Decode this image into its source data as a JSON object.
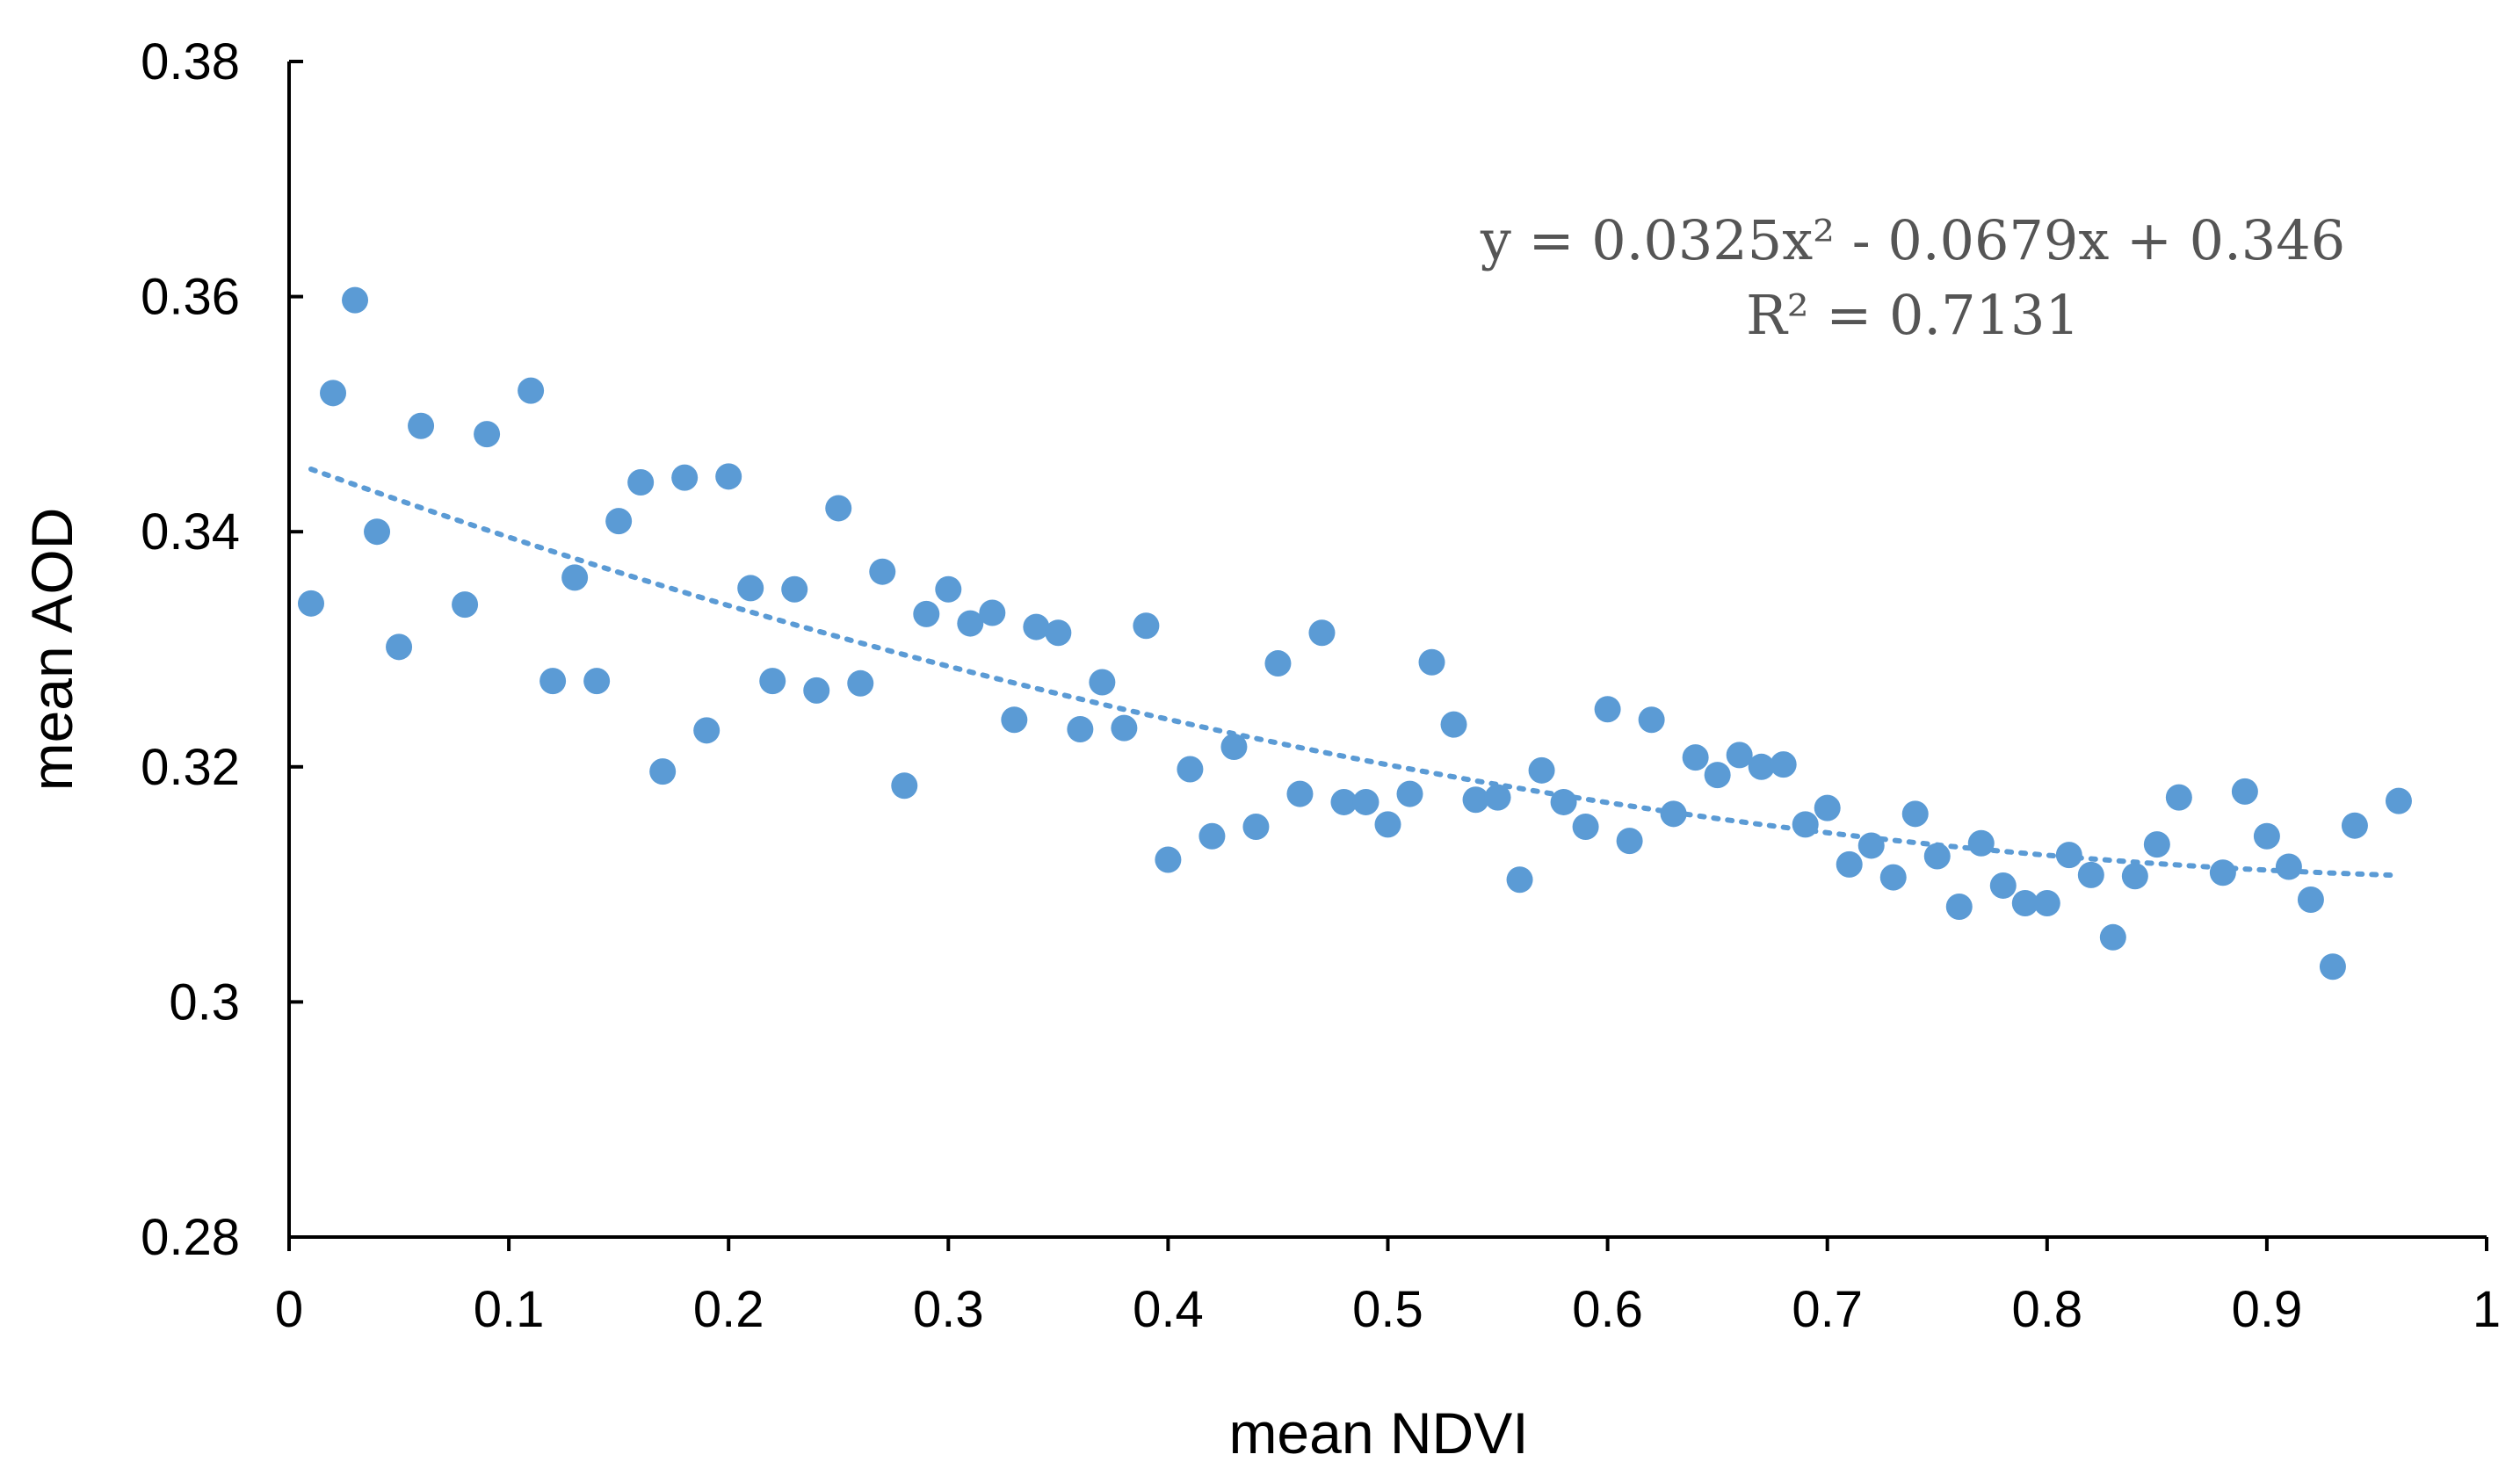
{
  "chart_data": {
    "type": "scatter",
    "title": "",
    "xlabel": "mean NDVI",
    "ylabel": "mean AOD",
    "xlim": [
      0,
      1
    ],
    "ylim": [
      0.28,
      0.38
    ],
    "x_ticks": [
      0,
      0.1,
      0.2,
      0.3,
      0.4,
      0.5,
      0.6,
      0.7,
      0.8,
      0.9,
      1
    ],
    "x_tick_labels": [
      "0",
      "0.1",
      "0.2",
      "0.3",
      "0.4",
      "0.5",
      "0.6",
      "0.7",
      "0.8",
      "0.9",
      "1"
    ],
    "y_ticks": [
      0.28,
      0.3,
      0.32,
      0.34,
      0.36,
      0.38
    ],
    "y_tick_labels": [
      "0.28",
      "0.3",
      "0.32",
      "0.34",
      "0.36",
      "0.38"
    ],
    "grid": false,
    "series": [
      {
        "name": "mean AOD",
        "color": "#5b9bd5",
        "x": [
          0.01,
          0.02,
          0.03,
          0.04,
          0.05,
          0.06,
          0.08,
          0.09,
          0.11,
          0.12,
          0.13,
          0.14,
          0.15,
          0.16,
          0.17,
          0.18,
          0.19,
          0.2,
          0.21,
          0.22,
          0.23,
          0.24,
          0.25,
          0.26,
          0.27,
          0.28,
          0.29,
          0.3,
          0.31,
          0.32,
          0.33,
          0.34,
          0.35,
          0.36,
          0.37,
          0.38,
          0.39,
          0.4,
          0.41,
          0.42,
          0.43,
          0.44,
          0.45,
          0.46,
          0.47,
          0.48,
          0.49,
          0.5,
          0.51,
          0.52,
          0.53,
          0.54,
          0.55,
          0.56,
          0.57,
          0.58,
          0.59,
          0.6,
          0.61,
          0.62,
          0.63,
          0.64,
          0.65,
          0.66,
          0.67,
          0.68,
          0.69,
          0.7,
          0.71,
          0.72,
          0.73,
          0.74,
          0.75,
          0.76,
          0.77,
          0.78,
          0.79,
          0.8,
          0.81,
          0.82,
          0.83,
          0.84,
          0.85,
          0.86,
          0.88,
          0.89,
          0.9,
          0.91,
          0.92,
          0.93,
          0.94,
          0.96
        ],
        "y": [
          0.3339,
          0.3518,
          0.3597,
          0.34,
          0.3302,
          0.349,
          0.3338,
          0.3483,
          0.352,
          0.3273,
          0.3361,
          0.3273,
          0.3409,
          0.3442,
          0.3196,
          0.3446,
          0.3231,
          0.3447,
          0.3352,
          0.3273,
          0.3351,
          0.3265,
          0.342,
          0.3271,
          0.3366,
          0.3184,
          0.333,
          0.3351,
          0.3322,
          0.3331,
          0.324,
          0.3319,
          0.3314,
          0.3232,
          0.3272,
          0.3233,
          0.332,
          0.3121,
          0.3198,
          0.3141,
          0.3217,
          0.3149,
          0.3288,
          0.3177,
          0.3314,
          0.317,
          0.317,
          0.3151,
          0.3177,
          0.3289,
          0.3236,
          0.3172,
          0.3174,
          0.3104,
          0.3197,
          0.317,
          0.3149,
          0.3249,
          0.3137,
          0.324,
          0.316,
          0.3208,
          0.3193,
          0.321,
          0.32,
          0.3202,
          0.3151,
          0.3165,
          0.3117,
          0.3133,
          0.3106,
          0.316,
          0.3124,
          0.3081,
          0.3135,
          0.3099,
          0.3084,
          0.3084,
          0.3125,
          0.3108,
          0.3055,
          0.3107,
          0.3134,
          0.3174,
          0.311,
          0.3179,
          0.3141,
          0.3115,
          0.3087,
          0.303,
          0.315,
          0.3171
        ]
      }
    ],
    "trendline": {
      "type": "polynomial",
      "order": 2,
      "coefficients": [
        0.0325,
        -0.0679,
        0.346
      ],
      "x_range": [
        0.01,
        0.96
      ],
      "style": "dotted",
      "r_squared": 0.7131
    },
    "annotations": {
      "equation": "y = 0.0325x² - 0.0679x + 0.346",
      "r_squared": "R² = 0.7131"
    }
  }
}
